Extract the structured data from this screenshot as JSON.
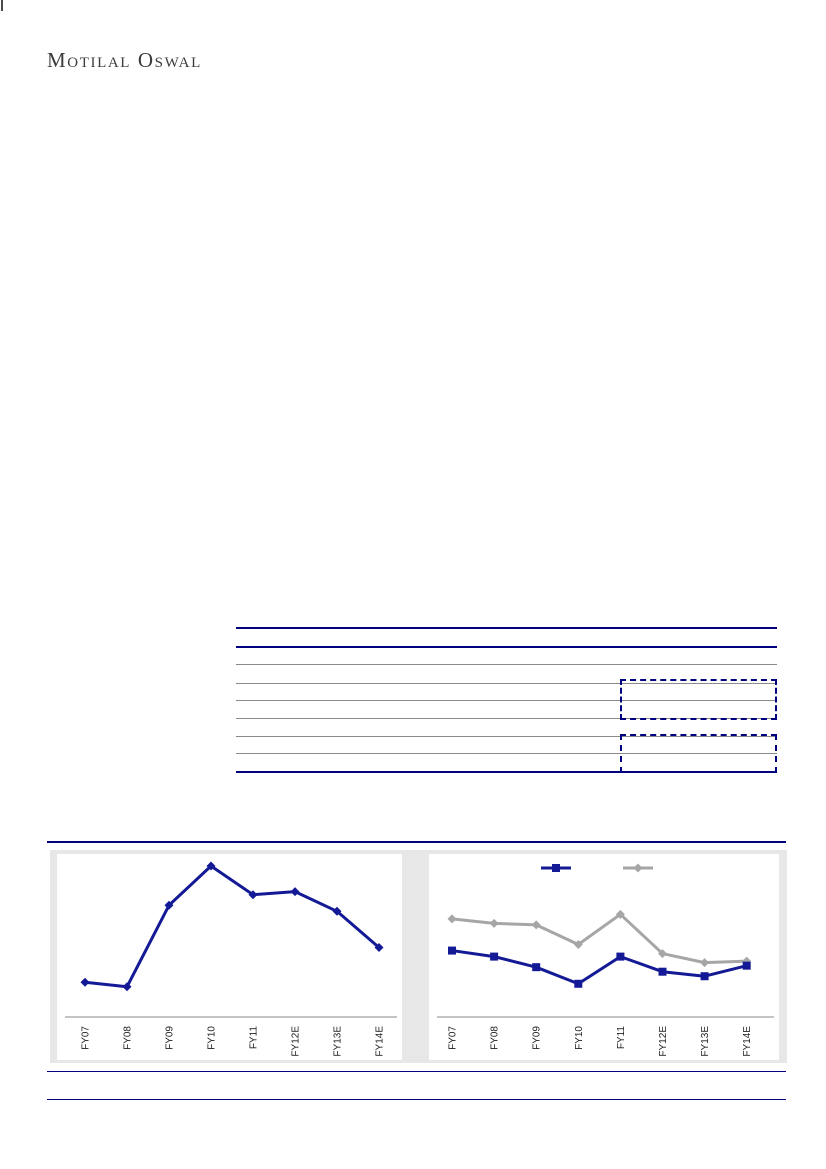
{
  "brand": {
    "logo_text": "Motilal Oswal"
  },
  "colors": {
    "navy": "#000080",
    "chart_navy": "#141a96",
    "chart_gray": "#a6a6a6",
    "rule_gray": "#8a8a8a",
    "band_bg": "#e7e7e7"
  },
  "chart_data": [
    {
      "type": "line",
      "position": "left-panel",
      "title": "",
      "xlabel": "",
      "ylabel": "",
      "categories": [
        "FY07",
        "FY08",
        "FY09",
        "FY10",
        "FY11",
        "FY12E",
        "FY13E",
        "FY14E"
      ],
      "series": [
        {
          "name": "",
          "marker": "diamond",
          "color": "#141a96",
          "values": [
            23,
            20,
            74,
            100,
            81,
            83,
            70,
            46
          ]
        }
      ],
      "ylim": [
        0,
        100
      ],
      "y_axis_visible": false,
      "grid": false,
      "legend_visible": false
    },
    {
      "type": "line",
      "position": "right-panel",
      "title": "",
      "xlabel": "",
      "ylabel": "",
      "categories": [
        "FY07",
        "FY08",
        "FY09",
        "FY10",
        "FY11",
        "FY12E",
        "FY13E",
        "FY14E"
      ],
      "series": [
        {
          "name": "",
          "marker": "diamond",
          "color": "#a6a6a6",
          "values": [
            65,
            62,
            61,
            48,
            68,
            42,
            36,
            37
          ]
        },
        {
          "name": "",
          "marker": "square",
          "color": "#141a96",
          "values": [
            44,
            40,
            33,
            22,
            40,
            30,
            27,
            34
          ]
        }
      ],
      "ylim": [
        0,
        100
      ],
      "y_axis_visible": false,
      "grid": false,
      "legend_visible": true,
      "legend_items": [
        {
          "label": "",
          "marker": "square",
          "color": "#141a96"
        },
        {
          "label": "",
          "marker": "diamond",
          "color": "#a6a6a6"
        }
      ],
      "legend_position": "top-center"
    }
  ]
}
